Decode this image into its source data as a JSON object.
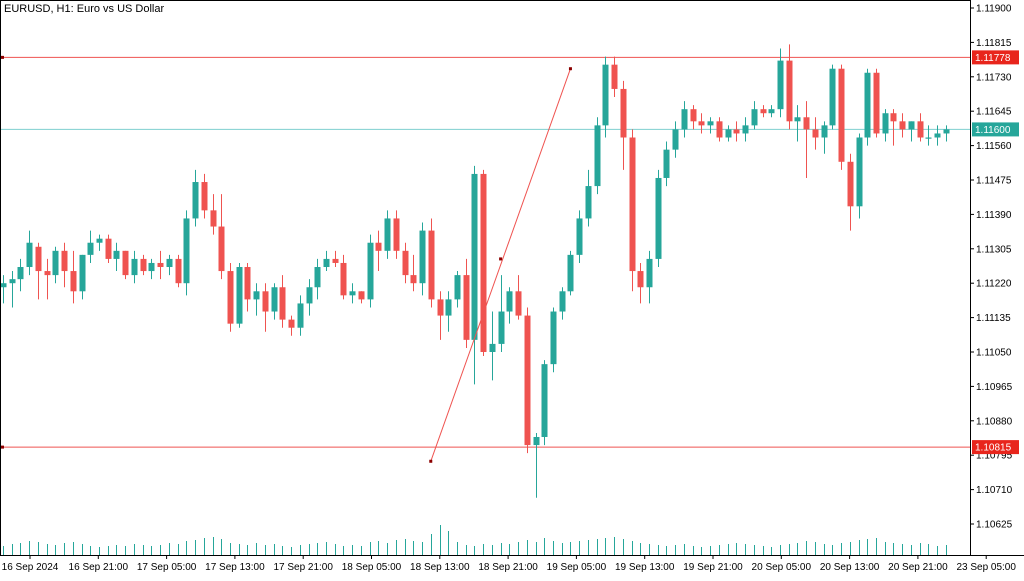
{
  "title": "EURUSD, H1:  Euro vs US Dollar",
  "colors": {
    "bull": "#26a69a",
    "bear": "#ef5350",
    "level_line": "#ef5350",
    "price_line": "#7ecfcf",
    "price_tag_bg": "#26a69a",
    "level_tag_bg": "#e8251c",
    "volume": "#26a69a",
    "axis": "#000000"
  },
  "chart_data": {
    "type": "candlestick",
    "symbol": "EURUSD",
    "timeframe": "H1",
    "ylim": [
      1.1058,
      1.1192
    ],
    "y_ticks": [
      "1.11900",
      "1.11815",
      "1.11730",
      "1.11645",
      "1.11560",
      "1.11475",
      "1.11390",
      "1.11305",
      "1.11220",
      "1.11135",
      "1.11050",
      "1.10965",
      "1.10880",
      "1.10795",
      "1.10710",
      "1.10625"
    ],
    "x_ticks": [
      "16 Sep 2024",
      "16 Sep 21:00",
      "17 Sep 05:00",
      "17 Sep 13:00",
      "17 Sep 21:00",
      "18 Sep 05:00",
      "18 Sep 13:00",
      "18 Sep 21:00",
      "19 Sep 05:00",
      "19 Sep 13:00",
      "19 Sep 21:00",
      "20 Sep 05:00",
      "20 Sep 13:00",
      "20 Sep 21:00",
      "23 Sep 05:00"
    ],
    "horizontal_levels": [
      {
        "value": 1.11778,
        "label": "1.11778"
      },
      {
        "value": 1.10815,
        "label": "1.10815"
      }
    ],
    "current_price": {
      "value": 1.116,
      "label": "1.11600"
    },
    "trendline": {
      "from": [
        49,
        1.1078
      ],
      "mid": [
        57,
        1.1128
      ],
      "to": [
        65,
        1.1175
      ]
    },
    "candles": [
      [
        1.1121,
        1.1124,
        1.1117,
        1.1122
      ],
      [
        1.1122,
        1.1125,
        1.1116,
        1.1123
      ],
      [
        1.1123,
        1.1128,
        1.112,
        1.1126
      ],
      [
        1.1126,
        1.1135,
        1.1124,
        1.1132
      ],
      [
        1.1131,
        1.1132,
        1.1118,
        1.1125
      ],
      [
        1.1125,
        1.1128,
        1.1118,
        1.1124
      ],
      [
        1.1124,
        1.1131,
        1.1122,
        1.113
      ],
      [
        1.113,
        1.1132,
        1.1121,
        1.1125
      ],
      [
        1.1125,
        1.113,
        1.1117,
        1.112
      ],
      [
        1.112,
        1.1129,
        1.1118,
        1.1129
      ],
      [
        1.1129,
        1.1135,
        1.1127,
        1.1132
      ],
      [
        1.1132,
        1.1134,
        1.113,
        1.1133
      ],
      [
        1.1133,
        1.1134,
        1.1127,
        1.1128
      ],
      [
        1.1128,
        1.1132,
        1.1125,
        1.113
      ],
      [
        1.113,
        1.113,
        1.1123,
        1.1124
      ],
      [
        1.1124,
        1.113,
        1.1122,
        1.1128
      ],
      [
        1.1128,
        1.1129,
        1.1124,
        1.1125
      ],
      [
        1.1125,
        1.1128,
        1.1123,
        1.1127
      ],
      [
        1.1127,
        1.113,
        1.1123,
        1.1126
      ],
      [
        1.1126,
        1.1129,
        1.1124,
        1.1128
      ],
      [
        1.1128,
        1.1129,
        1.1121,
        1.1122
      ],
      [
        1.1122,
        1.114,
        1.1119,
        1.1138
      ],
      [
        1.1138,
        1.115,
        1.1136,
        1.1147
      ],
      [
        1.1147,
        1.1149,
        1.1138,
        1.114
      ],
      [
        1.114,
        1.1144,
        1.1134,
        1.1136
      ],
      [
        1.1136,
        1.1144,
        1.1123,
        1.1125
      ],
      [
        1.1125,
        1.1127,
        1.111,
        1.1112
      ],
      [
        1.1112,
        1.1127,
        1.1111,
        1.1126
      ],
      [
        1.1126,
        1.1127,
        1.1115,
        1.1118
      ],
      [
        1.1118,
        1.1122,
        1.1114,
        1.112
      ],
      [
        1.112,
        1.1122,
        1.111,
        1.1115
      ],
      [
        1.1115,
        1.1122,
        1.1113,
        1.1121
      ],
      [
        1.1121,
        1.1124,
        1.1111,
        1.1113
      ],
      [
        1.1113,
        1.1114,
        1.1109,
        1.1111
      ],
      [
        1.1111,
        1.1119,
        1.1109,
        1.1117
      ],
      [
        1.1117,
        1.1123,
        1.1114,
        1.1121
      ],
      [
        1.1121,
        1.1128,
        1.1118,
        1.1126
      ],
      [
        1.1126,
        1.113,
        1.1125,
        1.1128
      ],
      [
        1.1128,
        1.113,
        1.1126,
        1.1127
      ],
      [
        1.1127,
        1.1129,
        1.1118,
        1.1119
      ],
      [
        1.1119,
        1.1122,
        1.1117,
        1.112
      ],
      [
        1.112,
        1.112,
        1.1117,
        1.1118
      ],
      [
        1.1118,
        1.1134,
        1.1116,
        1.1132
      ],
      [
        1.1132,
        1.1135,
        1.1125,
        1.113
      ],
      [
        1.113,
        1.114,
        1.1128,
        1.1138
      ],
      [
        1.1138,
        1.114,
        1.1128,
        1.113
      ],
      [
        1.113,
        1.1132,
        1.1122,
        1.1124
      ],
      [
        1.1124,
        1.1129,
        1.112,
        1.1122
      ],
      [
        1.1122,
        1.1137,
        1.1119,
        1.1135
      ],
      [
        1.1135,
        1.1138,
        1.1116,
        1.1118
      ],
      [
        1.1118,
        1.112,
        1.1108,
        1.1114
      ],
      [
        1.1114,
        1.112,
        1.111,
        1.1118
      ],
      [
        1.1118,
        1.1125,
        1.1116,
        1.1124
      ],
      [
        1.1124,
        1.1128,
        1.1106,
        1.1108
      ],
      [
        1.1108,
        1.1151,
        1.1097,
        1.1149
      ],
      [
        1.1149,
        1.115,
        1.1104,
        1.1105
      ],
      [
        1.1105,
        1.1115,
        1.1098,
        1.1107
      ],
      [
        1.1107,
        1.1124,
        1.1105,
        1.1115
      ],
      [
        1.1115,
        1.1121,
        1.1112,
        1.112
      ],
      [
        1.112,
        1.1124,
        1.1113,
        1.1114
      ],
      [
        1.1114,
        1.1116,
        1.108,
        1.1082
      ],
      [
        1.1082,
        1.1085,
        1.1069,
        1.1084
      ],
      [
        1.1084,
        1.1103,
        1.1082,
        1.1102
      ],
      [
        1.1102,
        1.1116,
        1.11,
        1.1115
      ],
      [
        1.1115,
        1.1121,
        1.1113,
        1.112
      ],
      [
        1.112,
        1.113,
        1.1119,
        1.1129
      ],
      [
        1.1129,
        1.114,
        1.1127,
        1.1138
      ],
      [
        1.1138,
        1.115,
        1.1136,
        1.1146
      ],
      [
        1.1146,
        1.1163,
        1.1144,
        1.1161
      ],
      [
        1.1161,
        1.1178,
        1.1158,
        1.1176
      ],
      [
        1.1176,
        1.1178,
        1.1168,
        1.117
      ],
      [
        1.117,
        1.1172,
        1.115,
        1.1158
      ],
      [
        1.1158,
        1.116,
        1.112,
        1.1125
      ],
      [
        1.1125,
        1.1127,
        1.1117,
        1.1121
      ],
      [
        1.1121,
        1.113,
        1.1117,
        1.1128
      ],
      [
        1.1128,
        1.115,
        1.1126,
        1.1148
      ],
      [
        1.1148,
        1.1157,
        1.1146,
        1.1155
      ],
      [
        1.1155,
        1.1162,
        1.1153,
        1.116
      ],
      [
        1.116,
        1.1167,
        1.1158,
        1.1165
      ],
      [
        1.1165,
        1.1166,
        1.116,
        1.1162
      ],
      [
        1.1162,
        1.1164,
        1.1159,
        1.1161
      ],
      [
        1.1161,
        1.1163,
        1.1159,
        1.1162
      ],
      [
        1.1162,
        1.1163,
        1.1157,
        1.1158
      ],
      [
        1.1158,
        1.1161,
        1.1157,
        1.116
      ],
      [
        1.116,
        1.1162,
        1.1157,
        1.1159
      ],
      [
        1.1159,
        1.1163,
        1.1157,
        1.1161
      ],
      [
        1.1161,
        1.1167,
        1.116,
        1.1165
      ],
      [
        1.1165,
        1.1166,
        1.1163,
        1.1164
      ],
      [
        1.1164,
        1.1166,
        1.1163,
        1.1165
      ],
      [
        1.1165,
        1.118,
        1.1163,
        1.1177
      ],
      [
        1.1177,
        1.1181,
        1.116,
        1.1162
      ],
      [
        1.1162,
        1.1166,
        1.1157,
        1.1163
      ],
      [
        1.1163,
        1.1167,
        1.1148,
        1.116
      ],
      [
        1.116,
        1.1163,
        1.1155,
        1.1158
      ],
      [
        1.1158,
        1.1162,
        1.1154,
        1.1161
      ],
      [
        1.1161,
        1.1176,
        1.116,
        1.1175
      ],
      [
        1.1175,
        1.1176,
        1.115,
        1.1152
      ],
      [
        1.1152,
        1.1154,
        1.1135,
        1.1141
      ],
      [
        1.1141,
        1.1159,
        1.1138,
        1.1158
      ],
      [
        1.1158,
        1.1175,
        1.1156,
        1.1174
      ],
      [
        1.1174,
        1.1175,
        1.1158,
        1.1159
      ],
      [
        1.1159,
        1.1165,
        1.1157,
        1.1164
      ],
      [
        1.1164,
        1.1165,
        1.1156,
        1.1162
      ],
      [
        1.1162,
        1.1164,
        1.1158,
        1.116
      ],
      [
        1.116,
        1.1162,
        1.1157,
        1.1162
      ],
      [
        1.1162,
        1.1164,
        1.1157,
        1.1158
      ],
      [
        1.1158,
        1.1161,
        1.1156,
        1.1158
      ],
      [
        1.1158,
        1.1161,
        1.1156,
        1.1159
      ],
      [
        1.1159,
        1.1161,
        1.1157,
        1.116
      ]
    ],
    "volume": [
      9,
      11,
      12,
      14,
      13,
      11,
      10,
      12,
      13,
      11,
      9,
      8,
      9,
      10,
      9,
      11,
      10,
      9,
      10,
      12,
      11,
      14,
      15,
      17,
      18,
      16,
      12,
      11,
      10,
      12,
      10,
      11,
      9,
      8,
      10,
      11,
      12,
      13,
      11,
      9,
      10,
      9,
      13,
      14,
      12,
      15,
      16,
      14,
      13,
      21,
      30,
      24,
      13,
      10,
      9,
      11,
      10,
      12,
      11,
      13,
      15,
      13,
      17,
      14,
      12,
      13,
      14,
      15,
      16,
      17,
      18,
      16,
      14,
      12,
      11,
      10,
      9,
      10,
      11,
      9,
      8,
      9,
      10,
      11,
      12,
      11,
      10,
      9,
      8,
      10,
      11,
      12,
      14,
      13,
      11,
      10,
      12,
      13,
      15,
      16,
      17,
      13,
      12,
      11,
      10,
      12,
      11,
      9,
      10
    ]
  }
}
